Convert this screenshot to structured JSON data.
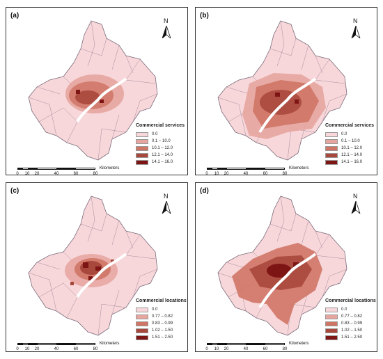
{
  "panels": [
    {
      "label": "(a)",
      "legend": {
        "title": "Commercial services",
        "items": [
          {
            "label": "0.0",
            "color": "#f7d7da"
          },
          {
            "label": "0.1 – 10.0",
            "color": "#e6a59f"
          },
          {
            "label": "10.1 – 12.0",
            "color": "#cf7566"
          },
          {
            "label": "12.1 – 14.0",
            "color": "#a8473b"
          },
          {
            "label": "14.1 – 16.0",
            "color": "#7e1515"
          }
        ]
      }
    },
    {
      "label": "(b)",
      "legend": {
        "title": "Commercial services",
        "items": [
          {
            "label": "0.0",
            "color": "#f7d7da"
          },
          {
            "label": "0.1 – 10.0",
            "color": "#e6a59f"
          },
          {
            "label": "10.1 – 12.0",
            "color": "#cf7566"
          },
          {
            "label": "12.1 – 14.0",
            "color": "#a8473b"
          },
          {
            "label": "14.1 – 16.0",
            "color": "#7e1515"
          }
        ]
      }
    },
    {
      "label": "(c)",
      "legend": {
        "title": "Commercial locations",
        "items": [
          {
            "label": "0.0",
            "color": "#f7d7da"
          },
          {
            "label": "0.77 – 0.82",
            "color": "#e6a59f"
          },
          {
            "label": "0.83 – 0.99",
            "color": "#cf7566"
          },
          {
            "label": "1.02 – 1.50",
            "color": "#a8473b"
          },
          {
            "label": "1.51 – 2.50",
            "color": "#7e1515"
          }
        ]
      }
    },
    {
      "label": "(d)",
      "legend": {
        "title": "Commercial locations",
        "items": [
          {
            "label": "0.0",
            "color": "#f7d7da"
          },
          {
            "label": "0.77 – 0.82",
            "color": "#e6a59f"
          },
          {
            "label": "0.83 – 0.99",
            "color": "#cf7566"
          },
          {
            "label": "1.02 – 1.50",
            "color": "#a8473b"
          },
          {
            "label": "1.51 – 2.50",
            "color": "#7e1515"
          }
        ]
      }
    }
  ],
  "north_label": "N",
  "scale": {
    "ticks": [
      "0",
      "10",
      "20",
      "40",
      "60",
      "80"
    ],
    "unit": "Kilometers"
  },
  "colors": {
    "base": "#f7d7da",
    "outline": "#7a6a7a",
    "river": "#ffffff"
  }
}
